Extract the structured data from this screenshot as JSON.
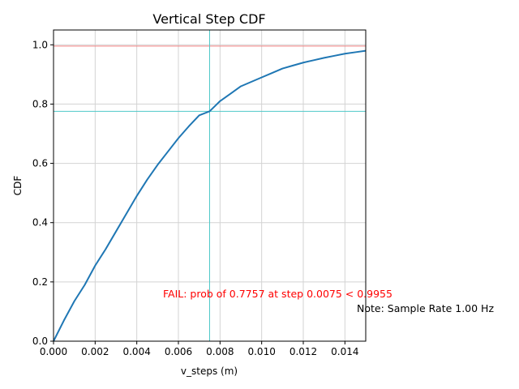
{
  "chart_data": {
    "type": "line",
    "title": "Vertical Step CDF",
    "xlabel": "v_steps (m)",
    "ylabel": "CDF",
    "xlim": [
      0,
      0.015
    ],
    "ylim": [
      0,
      1.05
    ],
    "grid": true,
    "x_ticks": [
      0,
      0.002,
      0.004,
      0.006,
      0.008,
      0.01,
      0.012,
      0.014
    ],
    "x_tick_labels": [
      "0.000",
      "0.002",
      "0.004",
      "0.006",
      "0.008",
      "0.010",
      "0.012",
      "0.014"
    ],
    "y_ticks": [
      0,
      0.2,
      0.4,
      0.6,
      0.8,
      1.0
    ],
    "y_tick_labels": [
      "0.0",
      "0.2",
      "0.4",
      "0.6",
      "0.8",
      "1.0"
    ],
    "series": [
      {
        "color": "#1f77b4",
        "x": [
          0,
          0.0005,
          0.001,
          0.0015,
          0.002,
          0.0025,
          0.003,
          0.0035,
          0.004,
          0.0045,
          0.005,
          0.0055,
          0.006,
          0.0065,
          0.007,
          0.0075,
          0.008,
          0.0085,
          0.009,
          0.0095,
          0.01,
          0.0105,
          0.011,
          0.0115,
          0.012,
          0.0125,
          0.013,
          0.0135,
          0.014,
          0.0145,
          0.015
        ],
        "y": [
          0.0,
          0.07,
          0.135,
          0.19,
          0.255,
          0.31,
          0.37,
          0.43,
          0.49,
          0.545,
          0.595,
          0.64,
          0.685,
          0.725,
          0.762,
          0.7757,
          0.81,
          0.835,
          0.86,
          0.875,
          0.89,
          0.905,
          0.92,
          0.93,
          0.94,
          0.948,
          0.956,
          0.963,
          0.97,
          0.975,
          0.98
        ]
      }
    ],
    "reference_lines": [
      {
        "orientation": "horizontal",
        "value": 0.9955,
        "color": "#f08080"
      },
      {
        "orientation": "horizontal",
        "value": 0.7757,
        "color": "#4fc8c8"
      },
      {
        "orientation": "vertical",
        "value": 0.0075,
        "color": "#4fc8c8"
      }
    ],
    "annotations": [
      {
        "text": "FAIL: prob of 0.7757 at step 0.0075 < 0.9955",
        "color": "#ff0000"
      },
      {
        "text": "Note: Sample Rate 1.00 Hz",
        "color": "#000000"
      }
    ]
  }
}
